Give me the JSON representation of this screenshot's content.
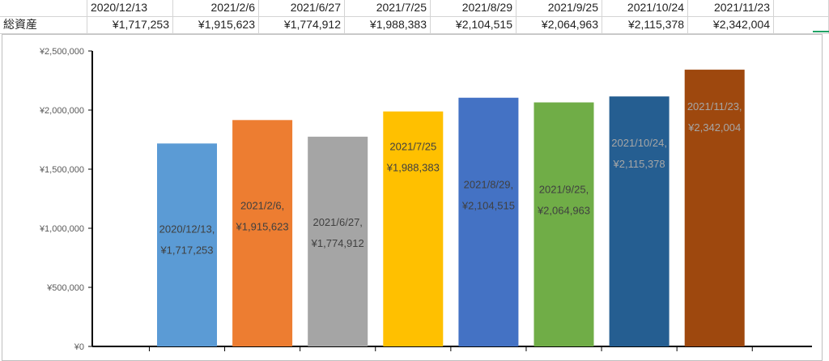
{
  "sheet": {
    "header_dates": [
      "2020/12/13",
      "2021/2/6",
      "2021/6/27",
      "2021/7/25",
      "2021/8/29",
      "2021/9/25",
      "2021/10/24",
      "2021/11/23"
    ],
    "row_label": "総資産",
    "row_values": [
      "¥1,717,253",
      "¥1,915,623",
      "¥1,774,912",
      "¥1,988,383",
      "¥2,104,515",
      "¥2,064,963",
      "¥2,115,378",
      "¥2,342,004"
    ]
  },
  "chart_data": {
    "type": "bar",
    "title": "",
    "xlabel": "",
    "ylabel": "",
    "categories": [
      "2020/12/13",
      "2021/2/6",
      "2021/6/27",
      "2021/7/25",
      "2021/8/29",
      "2021/9/25",
      "2021/10/24",
      "2021/11/23"
    ],
    "values": [
      1717253,
      1915623,
      1774912,
      1988383,
      2104515,
      2064963,
      2115378,
      2342004
    ],
    "ylim": [
      0,
      2500000
    ],
    "yticks": [
      0,
      500000,
      1000000,
      1500000,
      2000000,
      2500000
    ],
    "ytick_labels": [
      "¥0",
      "¥500,000",
      "¥1,000,000",
      "¥1,500,000",
      "¥2,000,000",
      "¥2,500,000"
    ],
    "data_labels": [
      {
        "category": "2020/12/13,",
        "value": "¥1,717,253"
      },
      {
        "category": "2021/2/6,",
        "value": "¥1,915,623"
      },
      {
        "category": "2021/6/27,",
        "value": "¥1,774,912"
      },
      {
        "category": "2021/7/25",
        "value": "¥1,988,383"
      },
      {
        "category": "2021/8/29,",
        "value": "¥2,104,515"
      },
      {
        "category": "2021/9/25,",
        "value": "¥2,064,963"
      },
      {
        "category": "2021/10/24,",
        "value": "¥2,115,378"
      },
      {
        "category": "2021/11/23,",
        "value": "¥2,342,004"
      }
    ],
    "bar_colors": [
      "#5b9bd5",
      "#ed7d31",
      "#a5a5a5",
      "#ffc000",
      "#4472c4",
      "#70ad47",
      "#255e91",
      "#9e480e"
    ],
    "grid": false
  }
}
